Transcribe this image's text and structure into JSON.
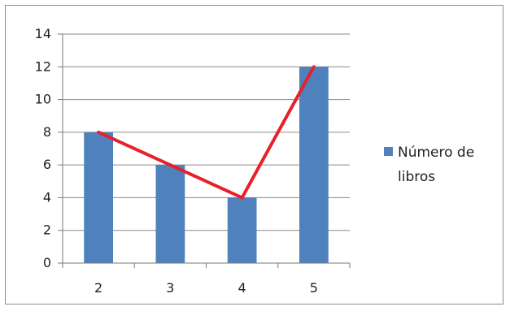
{
  "chart_data": {
    "type": "bar",
    "categories": [
      "2",
      "3",
      "4",
      "5"
    ],
    "series": [
      {
        "name": "Número de libros",
        "type": "bar",
        "values": [
          8,
          6,
          4,
          12
        ],
        "color": "#4f81bd"
      }
    ],
    "overlay_line": {
      "values": [
        8,
        6,
        4,
        12
      ],
      "color": "#e8202a"
    },
    "ylim": [
      0,
      14
    ],
    "yticks": [
      "0",
      "2",
      "4",
      "6",
      "8",
      "10",
      "12",
      "14"
    ],
    "grid": true,
    "legend": {
      "position": "right",
      "lines": [
        "Número de",
        "libros"
      ]
    }
  }
}
